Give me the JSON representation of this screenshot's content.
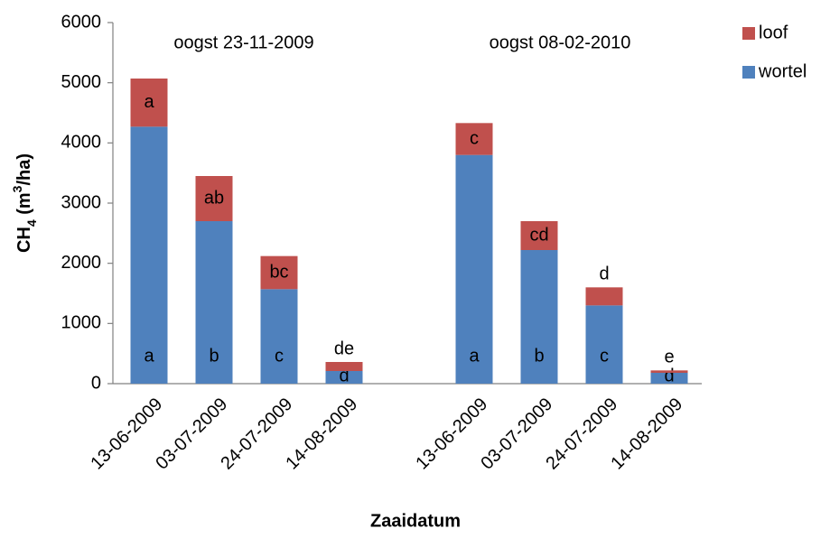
{
  "chart_data": {
    "type": "stacked_bar",
    "annotations": [
      "oogst 23-11-2009",
      "oogst 08-02-2010"
    ],
    "x_label": "Zaaidatum",
    "y_label": [
      "CH",
      "4",
      " (m",
      "3",
      "/ha)"
    ],
    "categories": [
      "13-06-2009",
      "03-07-2009",
      "24-07-2009",
      "14-08-2009",
      null,
      "13-06-2009",
      "03-07-2009",
      "24-07-2009",
      "14-08-2009"
    ],
    "series": [
      {
        "name": "wortel",
        "color": "#4f81bd",
        "values": [
          4270,
          2700,
          1570,
          210,
          null,
          3800,
          2220,
          1300,
          180
        ],
        "value_labels": [
          "a",
          "b",
          "c",
          "d",
          null,
          "a",
          "b",
          "c",
          "d"
        ]
      },
      {
        "name": "loof",
        "color": "#c0504d",
        "values": [
          800,
          750,
          550,
          150,
          null,
          530,
          480,
          300,
          40
        ],
        "value_labels": [
          "a",
          "ab",
          "bc",
          "de",
          null,
          "c",
          "cd",
          "d",
          "e"
        ]
      }
    ],
    "ylim": [
      0,
      6000
    ],
    "yticks": [
      0,
      1000,
      2000,
      3000,
      4000,
      5000,
      6000
    ],
    "legend": "top-right"
  }
}
